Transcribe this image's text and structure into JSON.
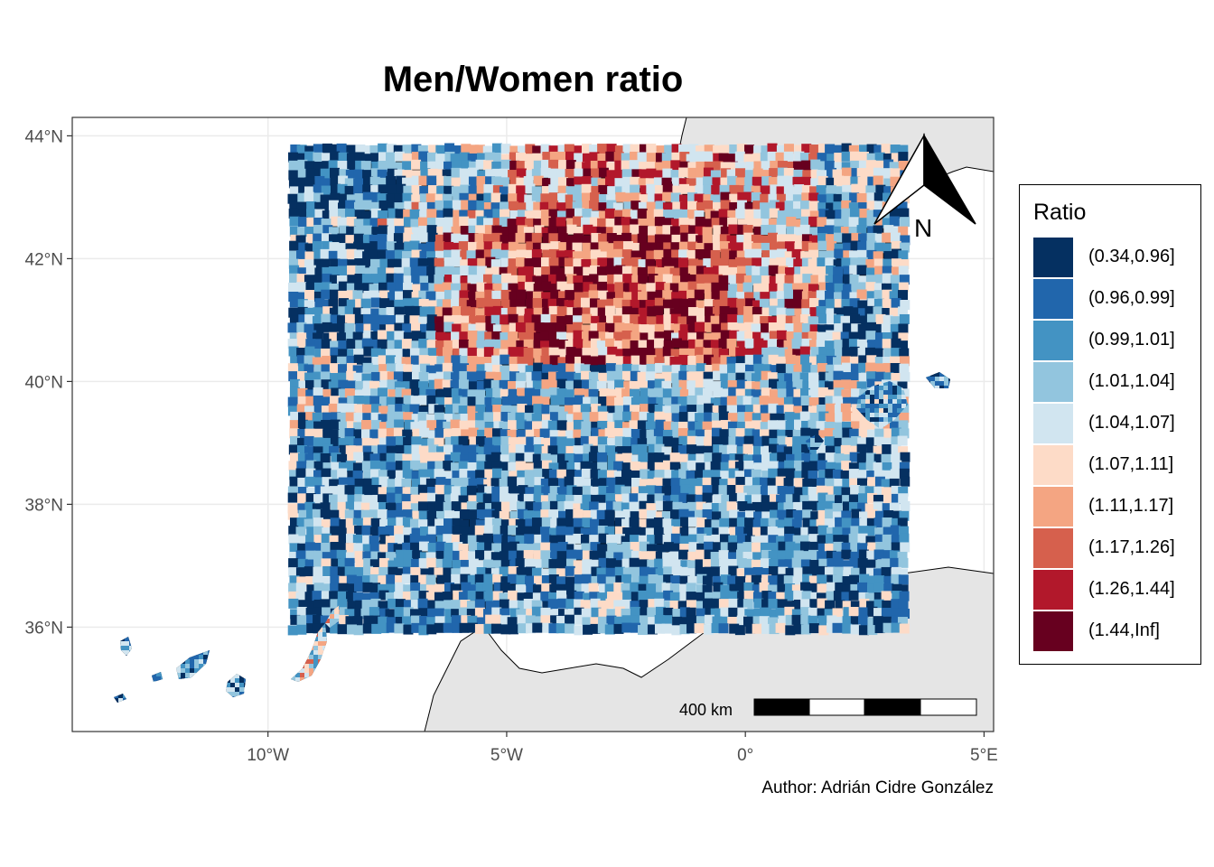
{
  "title": "Men/Women ratio",
  "caption": "Author: Adrián Cidre González",
  "axes": {
    "x_ticks": [
      "10°W",
      "5°W",
      "0°",
      "5°E"
    ],
    "x_values": [
      -10,
      -5,
      0,
      5
    ],
    "y_ticks": [
      "44°N",
      "42°N",
      "40°N",
      "38°N",
      "36°N"
    ],
    "y_values": [
      44,
      42,
      40,
      38,
      36
    ],
    "xlim": [
      -14.1,
      5.2
    ],
    "ylim": [
      34.3,
      44.3
    ],
    "grid": true
  },
  "legend": {
    "title": "Ratio",
    "placement": "right",
    "items": [
      {
        "label": "(0.34,0.96]",
        "color": "#053061"
      },
      {
        "label": "(0.96,0.99]",
        "color": "#2166ac"
      },
      {
        "label": "(0.99,1.01]",
        "color": "#4393c3"
      },
      {
        "label": "(1.01,1.04]",
        "color": "#92c5de"
      },
      {
        "label": "(1.04,1.07]",
        "color": "#d1e5f0"
      },
      {
        "label": "(1.07,1.11]",
        "color": "#fddbc7"
      },
      {
        "label": "(1.11,1.17]",
        "color": "#f4a582"
      },
      {
        "label": "(1.17,1.26]",
        "color": "#d6604d"
      },
      {
        "label": "(1.26,1.44]",
        "color": "#b2182b"
      },
      {
        "label": "(1.44,Inf]",
        "color": "#67001f"
      }
    ]
  },
  "scale_bar": {
    "label": "400 km"
  },
  "north_arrow": {
    "label": "N"
  },
  "colors": {
    "land_background": "#e5e5e5",
    "panel_border": "#333333",
    "grid": "#ebebeb"
  }
}
